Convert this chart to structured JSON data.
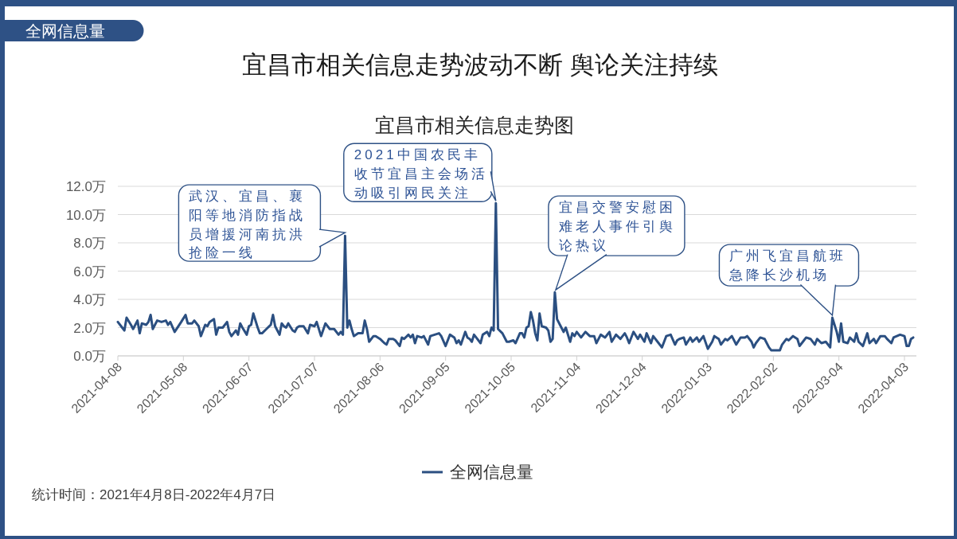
{
  "chart_data": {
    "type": "line",
    "title": "宜昌市相关信息走势波动不断 舆论关注持续",
    "subtitle": "宜昌市相关信息走势图",
    "annotations": [
      "全网信息量",
      {
        "text": "武汉、宜昌、襄阳等地消防指战员增援河南抗洪抢险一线",
        "x": "2021-07-21",
        "y": 8.5
      },
      {
        "text": "2021中国农民丰收节宜昌主会场活动吸引网民关注",
        "x": "2021-09-28",
        "y": 10.8
      },
      {
        "text": "宜昌交警安慰困难老人事件引舆论热议",
        "x": "2021-10-25",
        "y": 4.5
      },
      {
        "text": "广州飞宜昌航班急降长沙机场",
        "x": "2022-03-01",
        "y": 2.7
      },
      "统计时间：2021年4月8日-2022年4月7日"
    ],
    "x": [
      "2021-04-08",
      "2021-04-10",
      "2021-04-11",
      "2021-04-12",
      "2021-04-14",
      "2021-04-15",
      "2021-04-17",
      "2021-04-18",
      "2021-04-19",
      "2021-04-21",
      "2021-04-22",
      "2021-04-23",
      "2021-04-24",
      "2021-04-26",
      "2021-04-28",
      "2021-04-30",
      "2021-05-01",
      "2021-05-02",
      "2021-05-04",
      "2021-05-07",
      "2021-05-09",
      "2021-05-10",
      "2021-05-12",
      "2021-05-13",
      "2021-05-15",
      "2021-05-16",
      "2021-05-18",
      "2021-05-19",
      "2021-05-20",
      "2021-05-22",
      "2021-05-23",
      "2021-05-24",
      "2021-05-26",
      "2021-05-28",
      "2021-05-29",
      "2021-05-30",
      "2021-06-01",
      "2021-06-02",
      "2021-06-03",
      "2021-06-04",
      "2021-06-06",
      "2021-06-07",
      "2021-06-08",
      "2021-06-09",
      "2021-06-11",
      "2021-06-12",
      "2021-06-13",
      "2021-06-15",
      "2021-06-17",
      "2021-06-18",
      "2021-06-19",
      "2021-06-21",
      "2021-06-22",
      "2021-06-23",
      "2021-06-24",
      "2021-06-25",
      "2021-06-27",
      "2021-06-28",
      "2021-06-29",
      "2021-06-30",
      "2021-07-02",
      "2021-07-04",
      "2021-07-05",
      "2021-07-07",
      "2021-07-08",
      "2021-07-10",
      "2021-07-12",
      "2021-07-14",
      "2021-07-16",
      "2021-07-18",
      "2021-07-19",
      "2021-07-20",
      "2021-07-21",
      "2021-07-22",
      "2021-07-23",
      "2021-07-24",
      "2021-07-25",
      "2021-07-27",
      "2021-07-28",
      "2021-07-29",
      "2021-07-30",
      "2021-07-31",
      "2021-08-01",
      "2021-08-03",
      "2021-08-04",
      "2021-08-06",
      "2021-08-08",
      "2021-08-09",
      "2021-08-10",
      "2021-08-12",
      "2021-08-13",
      "2021-08-15",
      "2021-08-16",
      "2021-08-17",
      "2021-08-19",
      "2021-08-20",
      "2021-08-21",
      "2021-08-22",
      "2021-08-23",
      "2021-08-25",
      "2021-08-26",
      "2021-08-28",
      "2021-08-29",
      "2021-08-31",
      "2021-09-02",
      "2021-09-03",
      "2021-09-05",
      "2021-09-07",
      "2021-09-09",
      "2021-09-10",
      "2021-09-11",
      "2021-09-12",
      "2021-09-14",
      "2021-09-15",
      "2021-09-16",
      "2021-09-17",
      "2021-09-18",
      "2021-09-19",
      "2021-09-21",
      "2021-09-22",
      "2021-09-24",
      "2021-09-25",
      "2021-09-26",
      "2021-09-27",
      "2021-09-28",
      "2021-09-29",
      "2021-10-01",
      "2021-10-03",
      "2021-10-04",
      "2021-10-06",
      "2021-10-07",
      "2021-10-09",
      "2021-10-10",
      "2021-10-11",
      "2021-10-12",
      "2021-10-13",
      "2021-10-14",
      "2021-10-15",
      "2021-10-16",
      "2021-10-17",
      "2021-10-18",
      "2021-10-19",
      "2021-10-21",
      "2021-10-22",
      "2021-10-23",
      "2021-10-24",
      "2021-10-25",
      "2021-10-26",
      "2021-10-28",
      "2021-10-29",
      "2021-10-30",
      "2021-11-01",
      "2021-11-02",
      "2021-11-03",
      "2021-11-04",
      "2021-11-06",
      "2021-11-08",
      "2021-11-10",
      "2021-11-12",
      "2021-11-13",
      "2021-11-15",
      "2021-11-17",
      "2021-11-19",
      "2021-11-20",
      "2021-11-22",
      "2021-11-24",
      "2021-11-26",
      "2021-11-27",
      "2021-11-28",
      "2021-11-30",
      "2021-12-02",
      "2021-12-03",
      "2021-12-05",
      "2021-12-06",
      "2021-12-08",
      "2021-12-09",
      "2021-12-11",
      "2021-12-13",
      "2021-12-14",
      "2021-12-15",
      "2021-12-17",
      "2021-12-19",
      "2021-12-20",
      "2021-12-21",
      "2021-12-23",
      "2021-12-24",
      "2021-12-26",
      "2021-12-27",
      "2021-12-29",
      "2021-12-30",
      "2022-01-01",
      "2022-01-03",
      "2022-01-05",
      "2022-01-06",
      "2022-01-08",
      "2022-01-09",
      "2022-01-11",
      "2022-01-12",
      "2022-01-14",
      "2022-01-16",
      "2022-01-18",
      "2022-01-20",
      "2022-01-21",
      "2022-01-23",
      "2022-01-24",
      "2022-01-25",
      "2022-01-27",
      "2022-01-29",
      "2022-01-31",
      "2022-02-01",
      "2022-02-03",
      "2022-02-05",
      "2022-02-06",
      "2022-02-08",
      "2022-02-09",
      "2022-02-11",
      "2022-02-13",
      "2022-02-14",
      "2022-02-16",
      "2022-02-17",
      "2022-02-19",
      "2022-02-21",
      "2022-02-22",
      "2022-02-24",
      "2022-02-26",
      "2022-02-28",
      "2022-03-01",
      "2022-03-03",
      "2022-03-04",
      "2022-03-05",
      "2022-03-06",
      "2022-03-08",
      "2022-03-09",
      "2022-03-11",
      "2022-03-12",
      "2022-03-13",
      "2022-03-15",
      "2022-03-17",
      "2022-03-18",
      "2022-03-20",
      "2022-03-21",
      "2022-03-23",
      "2022-03-25",
      "2022-03-26",
      "2022-03-28",
      "2022-03-29",
      "2022-04-01",
      "2022-04-03",
      "2022-04-04",
      "2022-04-05",
      "2022-04-06",
      "2022-04-07"
    ],
    "series": [
      {
        "name": "全网信息量",
        "color": "#2b4f81",
        "values": [
          2.4,
          2.0,
          1.8,
          2.7,
          2.2,
          1.9,
          2.5,
          1.6,
          2.3,
          2.2,
          2.4,
          2.9,
          1.9,
          2.5,
          2.4,
          2.5,
          2.2,
          2.4,
          1.7,
          2.4,
          2.9,
          2.3,
          2.3,
          2.5,
          2.1,
          1.4,
          2.2,
          2.1,
          2.4,
          2.6,
          1.5,
          2.0,
          2.0,
          2.4,
          1.7,
          1.4,
          1.8,
          1.5,
          2.3,
          2.0,
          1.5,
          2.1,
          2.2,
          3.0,
          2.0,
          1.6,
          1.6,
          1.9,
          2.2,
          2.9,
          2.1,
          1.5,
          2.3,
          2.1,
          2.0,
          2.3,
          1.8,
          1.7,
          2.0,
          2.1,
          2.1,
          1.6,
          2.2,
          2.1,
          2.4,
          1.4,
          2.3,
          1.9,
          1.9,
          1.5,
          1.7,
          1.5,
          8.5,
          2.0,
          2.5,
          1.9,
          1.4,
          1.6,
          1.6,
          1.6,
          2.5,
          1.9,
          1.0,
          1.4,
          1.4,
          1.2,
          0.9,
          0.8,
          1.2,
          1.2,
          1.1,
          0.7,
          1.3,
          1.2,
          1.5,
          1.3,
          1.5,
          0.9,
          1.4,
          1.3,
          1.4,
          0.8,
          1.4,
          1.5,
          1.6,
          1.4,
          0.7,
          1.5,
          1.3,
          0.9,
          1.1,
          0.8,
          1.7,
          1.3,
          1.2,
          1.0,
          1.5,
          1.3,
          0.9,
          1.5,
          1.7,
          1.4,
          2.0,
          1.8,
          10.8,
          1.9,
          1.6,
          1.0,
          1.0,
          1.1,
          0.9,
          1.6,
          1.6,
          1.3,
          2.0,
          2.1,
          3.1,
          2.5,
          1.6,
          1.1,
          3.0,
          2.1,
          2.0,
          1.8,
          1.0,
          1.2,
          4.5,
          2.6,
          2.0,
          1.7,
          2.0,
          1.0,
          1.6,
          1.4,
          1.7,
          1.3,
          1.7,
          1.4,
          1.4,
          0.9,
          1.5,
          1.3,
          1.7,
          1.0,
          1.5,
          1.2,
          1.6,
          1.3,
          0.9,
          1.7,
          1.2,
          1.5,
          1.0,
          1.6,
          0.9,
          1.4,
          1.0,
          0.6,
          1.0,
          1.4,
          1.5,
          0.8,
          1.1,
          1.2,
          1.3,
          0.8,
          1.3,
          1.0,
          1.3,
          1.0,
          1.4,
          0.5,
          1.0,
          1.4,
          1.2,
          0.8,
          1.2,
          1.1,
          1.4,
          0.8,
          1.3,
          1.3,
          1.4,
          1.0,
          0.6,
          0.9,
          1.3,
          1.2,
          0.6,
          0.4,
          0.4,
          0.4,
          0.8,
          1.2,
          1.1,
          1.4,
          1.2,
          0.7,
          1.1,
          1.3,
          1.2,
          0.8,
          1.2,
          0.9,
          1.0,
          0.6,
          2.7,
          1.7,
          1.0,
          2.3,
          1.0,
          0.9,
          1.3,
          1.0,
          1.6,
          1.0,
          0.7,
          1.6,
          0.9,
          1.2,
          0.9,
          1.4,
          1.4,
          1.2,
          0.9,
          1.3,
          1.5,
          1.4,
          0.7,
          0.7,
          1.2,
          1.3
        ]
      }
    ],
    "xlim": [
      "2021-04-08",
      "2022-04-07"
    ],
    "xticks": [
      "2021-04-08",
      "2021-05-08",
      "2021-06-07",
      "2021-07-07",
      "2021-08-06",
      "2021-09-05",
      "2021-10-05",
      "2021-11-04",
      "2021-12-04",
      "2022-01-03",
      "2022-02-02",
      "2022-03-04",
      "2022-04-03"
    ],
    "ylim": [
      0,
      12
    ],
    "yticks": [
      {
        "value": 0,
        "label": "0.0万"
      },
      {
        "value": 2,
        "label": "2.0万"
      },
      {
        "value": 4,
        "label": "4.0万"
      },
      {
        "value": 6,
        "label": "6.0万"
      },
      {
        "value": 8,
        "label": "8.0万"
      },
      {
        "value": 10,
        "label": "10.0万"
      },
      {
        "value": 12,
        "label": "12.0万"
      }
    ],
    "grid": "y",
    "legend": "bottom"
  }
}
